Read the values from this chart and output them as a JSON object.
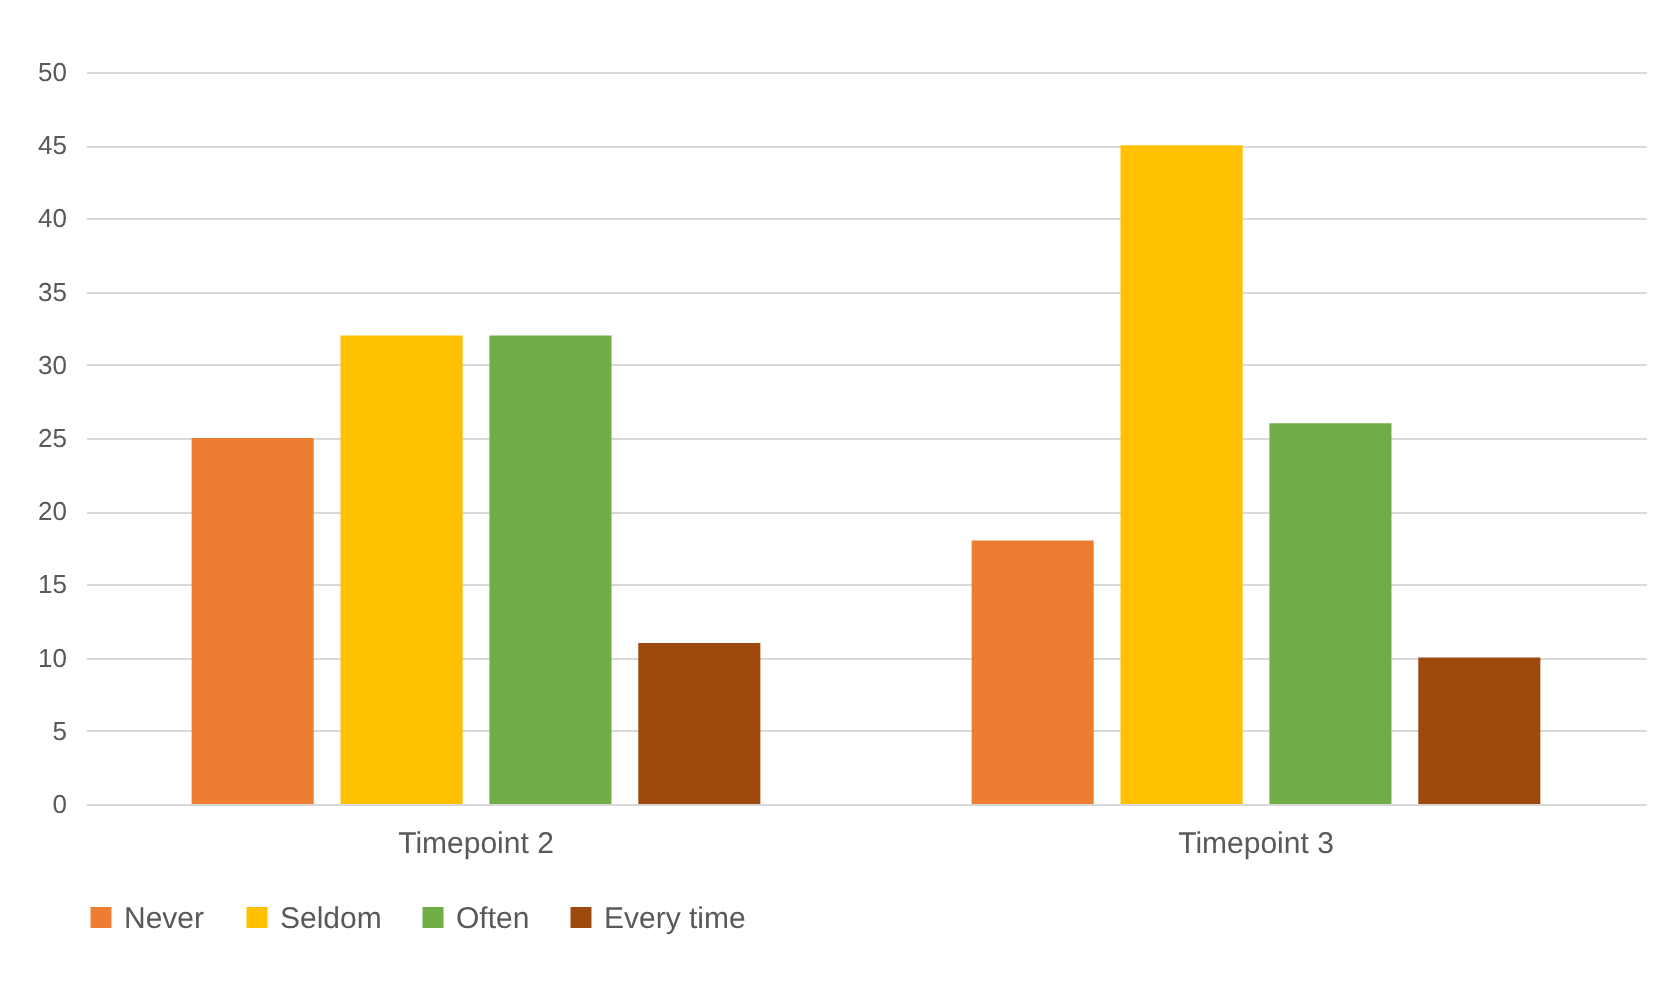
{
  "chart_data": {
    "type": "bar",
    "categories": [
      "Timepoint 2",
      "Timepoint 3"
    ],
    "series": [
      {
        "name": "Never",
        "color": "#ed7d31",
        "values": [
          25,
          18
        ]
      },
      {
        "name": "Seldom",
        "color": "#ffc000",
        "values": [
          32,
          45
        ]
      },
      {
        "name": "Often",
        "color": "#70ad47",
        "values": [
          32,
          26
        ]
      },
      {
        "name": "Every time",
        "color": "#9e480e",
        "values": [
          11,
          10
        ]
      }
    ],
    "ylim": [
      0,
      50
    ],
    "yticks": [
      0,
      5,
      10,
      15,
      20,
      25,
      30,
      35,
      40,
      45,
      50
    ],
    "grid": "y",
    "legend": "bottom"
  }
}
